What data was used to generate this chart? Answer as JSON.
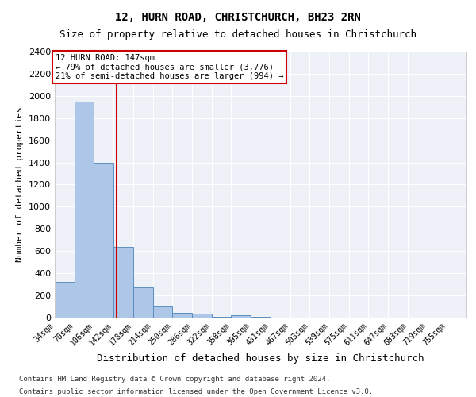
{
  "title": "12, HURN ROAD, CHRISTCHURCH, BH23 2RN",
  "subtitle": "Size of property relative to detached houses in Christchurch",
  "xlabel": "Distribution of detached houses by size in Christchurch",
  "ylabel": "Number of detached properties",
  "bar_labels": [
    "34sqm",
    "70sqm",
    "106sqm",
    "142sqm",
    "178sqm",
    "214sqm",
    "250sqm",
    "286sqm",
    "322sqm",
    "358sqm",
    "395sqm",
    "431sqm",
    "467sqm",
    "503sqm",
    "539sqm",
    "575sqm",
    "611sqm",
    "647sqm",
    "683sqm",
    "719sqm",
    "755sqm"
  ],
  "bar_values": [
    320,
    1950,
    1400,
    640,
    270,
    100,
    40,
    35,
    5,
    20,
    5,
    0,
    0,
    0,
    0,
    0,
    0,
    0,
    0,
    0,
    0
  ],
  "bar_color": "#aec6e8",
  "bar_edgecolor": "#5a8fc0",
  "property_size": 147,
  "property_label": "12 HURN ROAD: 147sqm",
  "annotation_line1": "← 79% of detached houses are smaller (3,776)",
  "annotation_line2": "21% of semi-detached houses are larger (994) →",
  "vline_color": "#cc0000",
  "annotation_box_edgecolor": "#cc0000",
  "ylim": [
    0,
    2400
  ],
  "yticks": [
    0,
    200,
    400,
    600,
    800,
    1000,
    1200,
    1400,
    1600,
    1800,
    2000,
    2200,
    2400
  ],
  "bin_width": 36,
  "first_edge": 34,
  "footer_line1": "Contains HM Land Registry data © Crown copyright and database right 2024.",
  "footer_line2": "Contains public sector information licensed under the Open Government Licence v3.0.",
  "plot_bg_color": "#eef2f8"
}
